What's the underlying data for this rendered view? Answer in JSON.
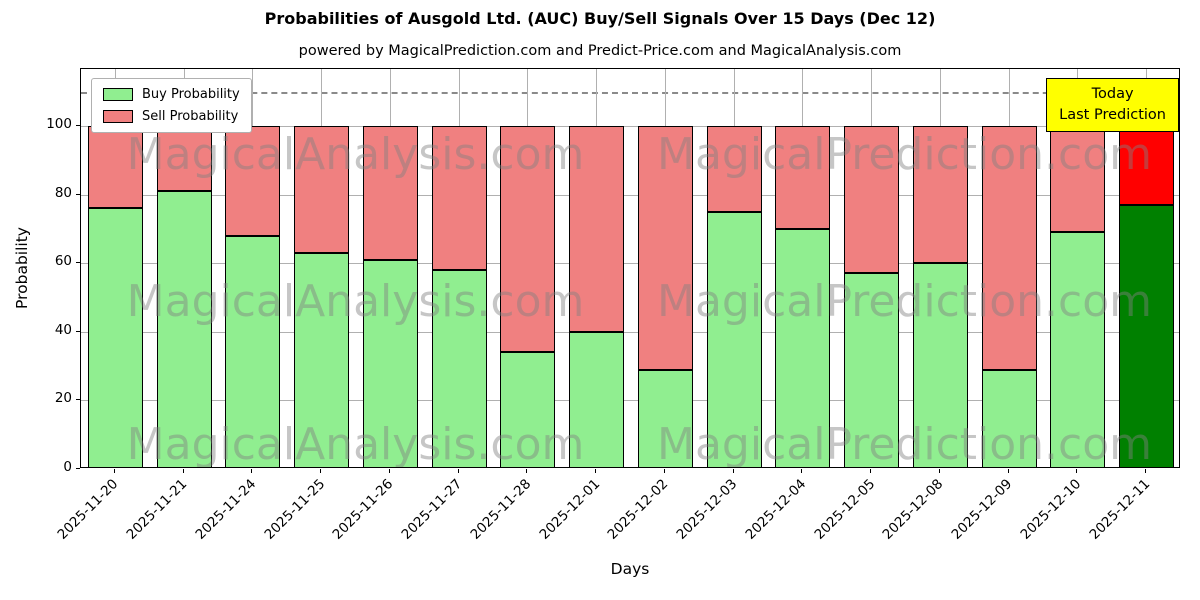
{
  "title": "Probabilities of Ausgold Ltd. (AUC) Buy/Sell Signals Over 15 Days (Dec 12)",
  "subtitle": "powered by MagicalPrediction.com and Predict-Price.com and MagicalAnalysis.com",
  "annotation": {
    "line1": "Today",
    "line2": "Last Prediction"
  },
  "watermarks": [
    "MagicalAnalysis.com",
    "MagicalPrediction.com"
  ],
  "colors": {
    "buy": "#90ee90",
    "sell": "#f08080",
    "today_buy": "#008000",
    "today_sell": "#ff0000",
    "annotation_bg": "#ffff00",
    "grid": "#b0b0b0",
    "dashed_line": "#8a8a8a"
  },
  "chart_data": {
    "type": "bar",
    "stacked": true,
    "title": "Probabilities of Ausgold Ltd. (AUC) Buy/Sell Signals Over 15 Days (Dec 12)",
    "xlabel": "Days",
    "ylabel": "Probability",
    "categories": [
      "2025-11-20",
      "2025-11-21",
      "2025-11-24",
      "2025-11-25",
      "2025-11-26",
      "2025-11-27",
      "2025-11-28",
      "2025-12-01",
      "2025-12-02",
      "2025-12-03",
      "2025-12-04",
      "2025-12-05",
      "2025-12-08",
      "2025-12-09",
      "2025-12-10",
      "2025-12-11"
    ],
    "series": [
      {
        "name": "Buy Probability",
        "values": [
          76,
          81,
          68,
          63,
          61,
          58,
          34,
          40,
          29,
          75,
          70,
          57,
          60,
          29,
          69,
          77
        ]
      },
      {
        "name": "Sell Probability",
        "values": [
          24,
          19,
          32,
          37,
          39,
          42,
          66,
          60,
          71,
          25,
          30,
          43,
          40,
          71,
          31,
          23
        ]
      }
    ],
    "ylim": [
      0,
      116.6
    ],
    "yticks": [
      0,
      20,
      40,
      60,
      80,
      100
    ],
    "dashed_line_y": 110,
    "today_index": 15,
    "grid": true,
    "legend_position": "upper left"
  }
}
